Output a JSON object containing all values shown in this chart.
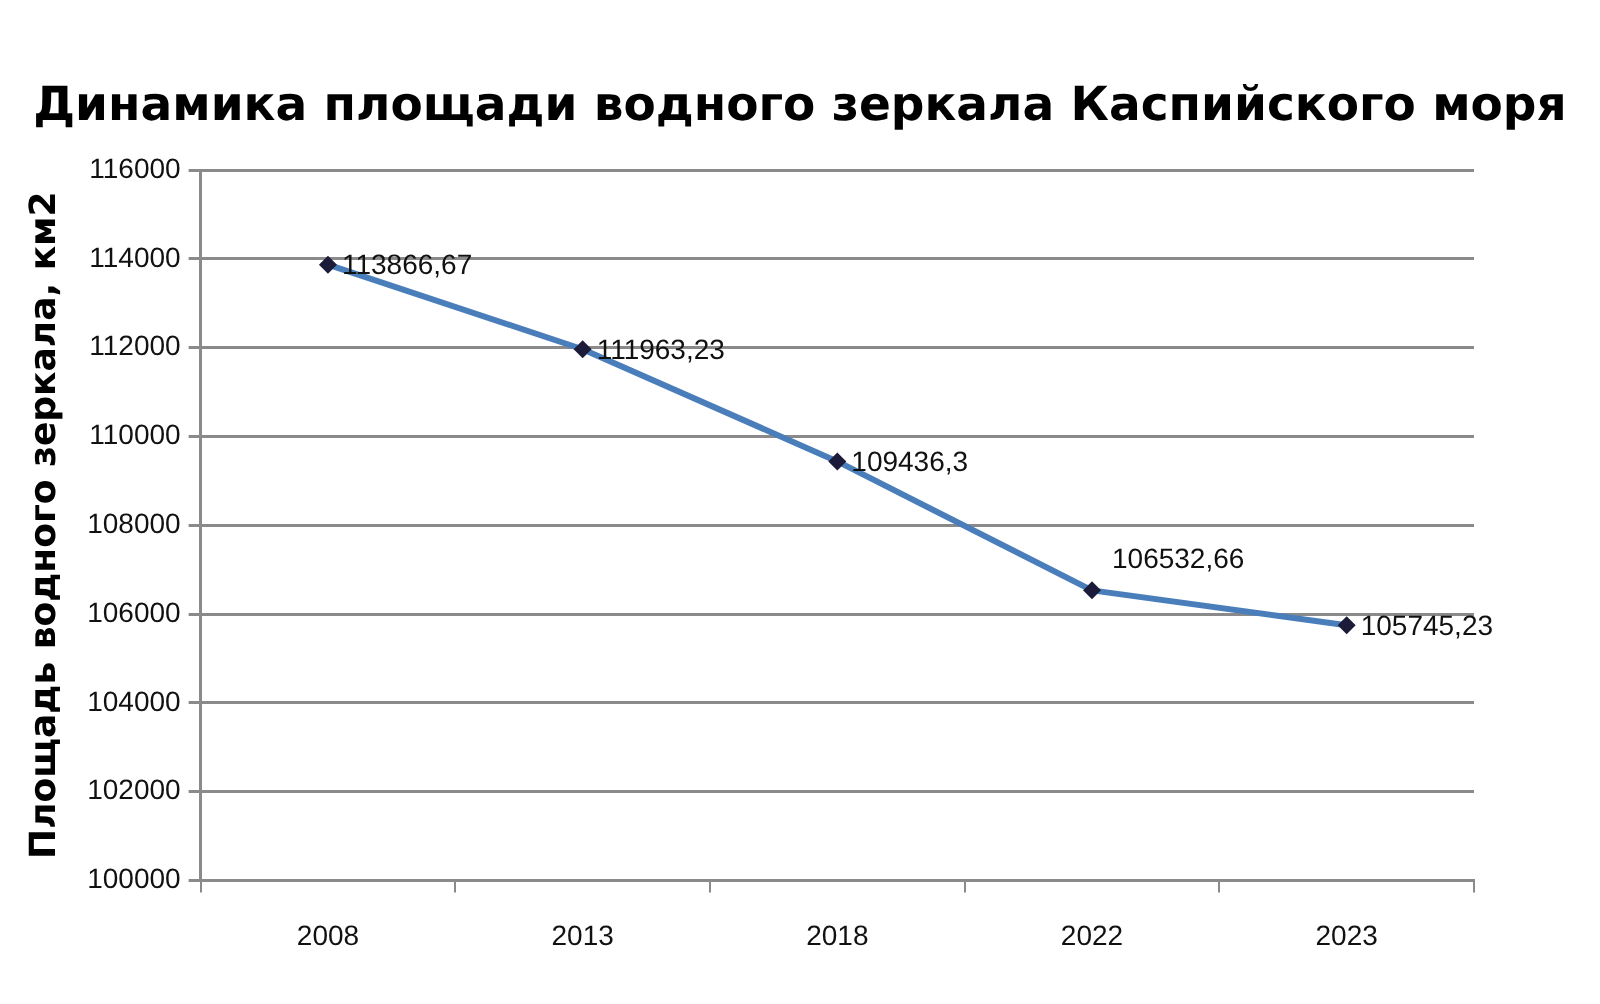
{
  "chart_data": {
    "type": "line",
    "title": "Динамика площади водного зеркала Каспийского моря",
    "ylabel": "Площадь водного зеркала, км2",
    "categories": [
      "2008",
      "2013",
      "2018",
      "2022",
      "2023"
    ],
    "values": [
      113866.67,
      111963.23,
      109436.3,
      106532.66,
      105745.23
    ],
    "color": "#4a7ebb",
    "value_labels": [
      "113866,67",
      "111963,23",
      "109436,3",
      "106532,66",
      "105745,23"
    ],
    "ylim": [
      100000,
      116000
    ],
    "yticks": [
      100000,
      102000,
      104000,
      106000,
      108000,
      110000,
      112000,
      114000,
      116000
    ],
    "grid": "y",
    "legend": false,
    "marker": "diamond"
  }
}
